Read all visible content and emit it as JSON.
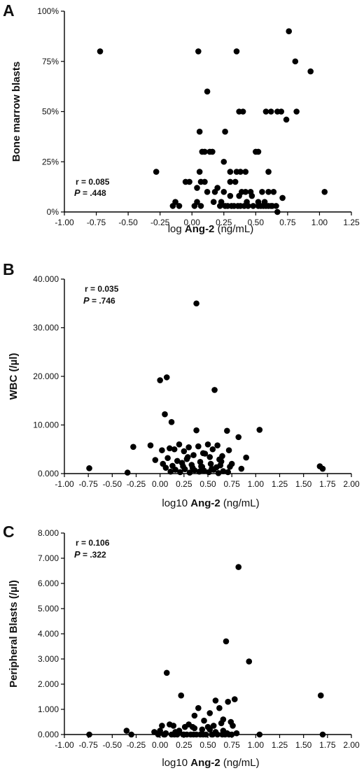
{
  "chart_data": [
    {
      "panel": "A",
      "type": "scatter",
      "xlabel_prefix": "log ",
      "xlabel_bold": "Ang-2",
      "xlabel_suffix": " (ng/mL)",
      "ylabel": "Bone marrow blasts",
      "xlim": [
        -1.0,
        1.25
      ],
      "ylim": [
        0,
        100
      ],
      "xticks": [
        "-1.00",
        "-0.75",
        "-0.50",
        "-0.25",
        "0.00",
        "0.25",
        "0.50",
        "0.75",
        "1.00",
        "1.25"
      ],
      "yticks": [
        "0%",
        "25%",
        "50%",
        "75%",
        "100%"
      ],
      "stat_r": "r = 0.085",
      "stat_p_label": "P",
      "stat_p_value": " = .448",
      "x": [
        -0.72,
        0.05,
        0.35,
        0.76,
        0.81,
        0.93,
        0.12,
        0.58,
        0.37,
        0.4,
        0.62,
        0.67,
        0.7,
        0.74,
        0.82,
        0.06,
        0.26,
        0.5,
        0.08,
        0.1,
        0.14,
        0.16,
        0.25,
        0.52,
        -0.28,
        0.06,
        0.3,
        0.35,
        0.38,
        0.42,
        0.6,
        0.07,
        0.1,
        0.3,
        0.34,
        -0.05,
        -0.02,
        0.2,
        0.04,
        0.12,
        0.18,
        0.25,
        0.39,
        0.42,
        0.46,
        0.55,
        0.6,
        0.64,
        1.04,
        0.3,
        0.37,
        0.47,
        -0.13,
        0.04,
        0.17,
        0.23,
        0.43,
        0.52,
        0.57,
        0.71,
        -0.1,
        0.07,
        0.22,
        0.28,
        0.33,
        0.38,
        0.44,
        0.52,
        0.56,
        0.6,
        0.63,
        0.66,
        -0.15,
        0.02,
        0.26,
        0.31,
        0.36,
        0.41,
        0.48,
        0.54,
        0.58,
        0.62,
        0.67
      ],
      "y": [
        80,
        80,
        80,
        90,
        75,
        70,
        60,
        50,
        50,
        50,
        50,
        50,
        50,
        46,
        50,
        40,
        40,
        30,
        30,
        30,
        30,
        30,
        25,
        30,
        20,
        20,
        20,
        20,
        20,
        20,
        20,
        15,
        15,
        15,
        15,
        15,
        15,
        12,
        12,
        10,
        10,
        10,
        10,
        10,
        10,
        10,
        10,
        10,
        10,
        8,
        8,
        8,
        5,
        5,
        5,
        5,
        5,
        5,
        5,
        7,
        3,
        3,
        3,
        3,
        3,
        3,
        3,
        3,
        3,
        3,
        3,
        3,
        3,
        3,
        3,
        3,
        3,
        3,
        3,
        3,
        3,
        3,
        0
      ]
    },
    {
      "panel": "B",
      "type": "scatter",
      "xlabel_prefix": "log10 ",
      "xlabel_bold": "Ang-2",
      "xlabel_suffix": " (ng/mL)",
      "ylabel": "WBC (/µl)",
      "xlim": [
        -1.0,
        2.0
      ],
      "ylim": [
        0,
        40000
      ],
      "xticks": [
        "-1.00",
        "-0.75",
        "-0.50",
        "-0.25",
        "0.00",
        "0.25",
        "0.50",
        "0.75",
        "1.00",
        "1.25",
        "1.50",
        "1.75",
        "2.00"
      ],
      "yticks": [
        "0.000",
        "10.000",
        "20.000",
        "30.000",
        "40.000"
      ],
      "stat_r": "r = 0.035",
      "stat_p_label": "P",
      "stat_p_value": " = .746",
      "x": [
        0.38,
        0.0,
        0.07,
        0.57,
        0.05,
        0.12,
        1.04,
        0.38,
        0.82,
        0.7,
        -0.28,
        -0.74,
        -0.34,
        1.67,
        1.7,
        -0.1,
        0.02,
        0.1,
        0.2,
        0.3,
        0.4,
        0.5,
        0.6,
        0.72,
        0.9,
        0.15,
        0.25,
        0.35,
        0.45,
        0.55,
        0.65,
        -0.05,
        0.08,
        0.18,
        0.28,
        0.42,
        0.52,
        0.62,
        0.75,
        0.03,
        0.13,
        0.23,
        0.33,
        0.43,
        0.53,
        0.63,
        0.73,
        0.85,
        0.06,
        0.16,
        0.26,
        0.36,
        0.46,
        0.56,
        0.66,
        0.11,
        0.21,
        0.31,
        0.41,
        0.51,
        0.61,
        0.71,
        0.24,
        0.34,
        0.44,
        0.54,
        0.64,
        0.59,
        0.47,
        0.29
      ],
      "y": [
        35000,
        19200,
        19800,
        17200,
        12200,
        10600,
        9000,
        8900,
        7500,
        8800,
        5500,
        1100,
        200,
        1500,
        1000,
        5800,
        4800,
        5200,
        6000,
        5400,
        5600,
        6000,
        5800,
        4800,
        3300,
        5000,
        4600,
        3800,
        4200,
        5000,
        3600,
        2800,
        3200,
        2600,
        3000,
        2400,
        3400,
        2900,
        2000,
        2000,
        1600,
        2200,
        1800,
        1500,
        2000,
        1700,
        1400,
        1000,
        1200,
        800,
        900,
        700,
        600,
        800,
        500,
        400,
        300,
        200,
        400,
        300,
        100,
        300,
        1500,
        1200,
        1400,
        1000,
        2500,
        1300,
        4100,
        3400
      ]
    },
    {
      "panel": "C",
      "type": "scatter",
      "xlabel_prefix": "log10 ",
      "xlabel_bold": "Ang-2",
      "xlabel_suffix": " (ng/mL)",
      "ylabel": "Peripheral Blasts (/µl)",
      "xlim": [
        -1.0,
        2.0
      ],
      "ylim": [
        0,
        8000
      ],
      "xticks": [
        "-1.00",
        "-0.75",
        "-0.50",
        "-0.25",
        "0.00",
        "0.25",
        "0.50",
        "0.75",
        "1.00",
        "1.25",
        "1.50",
        "1.75",
        "2.00"
      ],
      "yticks": [
        "0.000",
        "1.000",
        "2.000",
        "3.000",
        "4.000",
        "5.000",
        "6.000",
        "7.000",
        "8.000"
      ],
      "stat_r": "r = 0.106",
      "stat_p_label": "P",
      "stat_p_value": " = .322",
      "x": [
        0.82,
        0.69,
        0.93,
        0.07,
        0.22,
        1.68,
        0.78,
        0.58,
        0.71,
        0.4,
        0.62,
        0.52,
        0.66,
        0.74,
        0.36,
        0.46,
        0.3,
        0.56,
        0.02,
        0.1,
        0.14,
        0.26,
        0.34,
        0.44,
        0.5,
        0.64,
        0.76,
        -0.35,
        -0.3,
        -0.74,
        1.04,
        1.7,
        -0.02,
        0.04,
        0.12,
        0.18,
        0.24,
        0.28,
        0.32,
        0.38,
        0.42,
        0.48,
        0.54,
        0.6,
        0.68,
        0.72,
        -0.06,
        0.0,
        0.06,
        0.16,
        0.2,
        0.36,
        0.52,
        0.58,
        0.66,
        0.7,
        0.8,
        0.05,
        0.15,
        0.25,
        0.35,
        0.45,
        0.55,
        0.65,
        0.75
      ],
      "y": [
        6650,
        3700,
        2900,
        2450,
        1550,
        1550,
        1400,
        1350,
        1300,
        1050,
        1050,
        850,
        600,
        500,
        750,
        550,
        400,
        350,
        350,
        400,
        350,
        300,
        300,
        200,
        300,
        450,
        350,
        150,
        0,
        0,
        0,
        0,
        0,
        0,
        0,
        0,
        0,
        0,
        0,
        0,
        0,
        0,
        0,
        0,
        0,
        0,
        100,
        150,
        50,
        100,
        150,
        250,
        200,
        100,
        150,
        50,
        50,
        0,
        0,
        0,
        0,
        0,
        0,
        0,
        0
      ]
    }
  ]
}
